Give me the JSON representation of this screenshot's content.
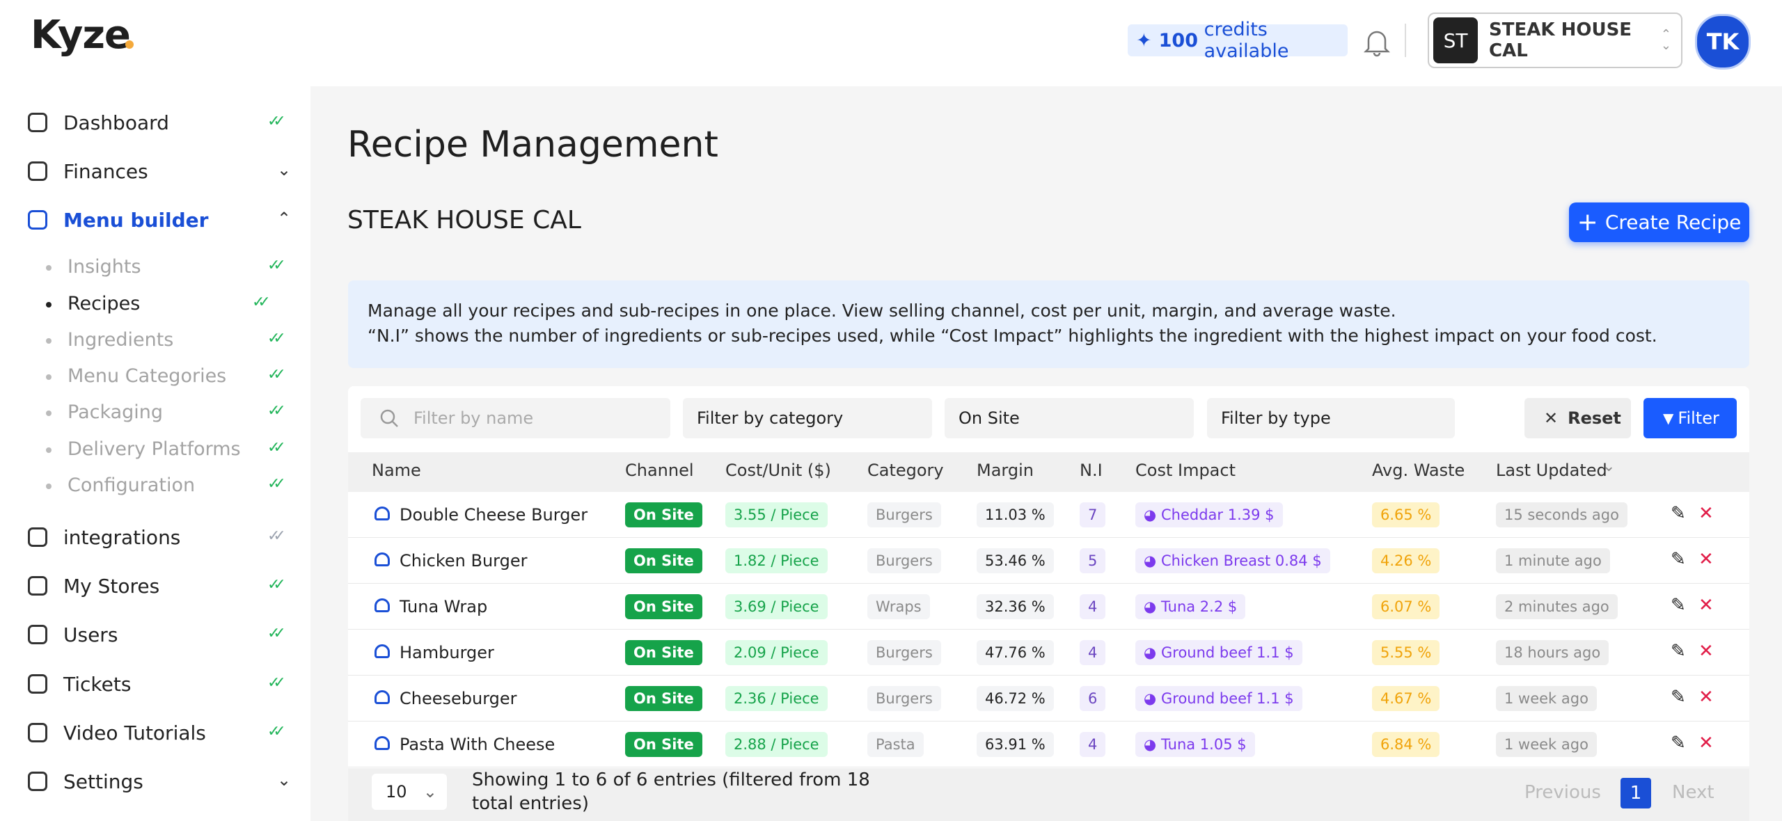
{
  "header": {
    "logo": "Kyze",
    "credits_count": "100",
    "credits_text": "credits available",
    "store_initials": "ST",
    "store_name": "STEAK HOUSE CAL",
    "user_initials": "TK"
  },
  "sidebar": {
    "items": [
      {
        "label": "Dashboard",
        "check_color": "#22b55a"
      },
      {
        "label": "Finances"
      },
      {
        "label": "Menu builder"
      },
      {
        "label": "Insights",
        "check_color": "#22b55a"
      },
      {
        "label": "Recipes",
        "check_color": "#22b55a"
      },
      {
        "label": "Ingredients",
        "check_color": "#22b55a"
      },
      {
        "label": "Menu Categories",
        "check_color": "#22b55a"
      },
      {
        "label": "Packaging",
        "check_color": "#22b55a"
      },
      {
        "label": "Delivery Platforms",
        "check_color": "#22b55a"
      },
      {
        "label": "Configuration",
        "check_color": "#22b55a"
      },
      {
        "label": "integrations",
        "check_color": "#9ca3af"
      },
      {
        "label": "My Stores",
        "check_color": "#22b55a"
      },
      {
        "label": "Users",
        "check_color": "#22b55a"
      },
      {
        "label": "Tickets",
        "check_color": "#22b55a"
      },
      {
        "label": "Video Tutorials",
        "check_color": "#22b55a"
      },
      {
        "label": "Settings"
      }
    ]
  },
  "page": {
    "title": "Recipe Management",
    "store": "STEAK HOUSE CAL",
    "create_button": "Create Recipe",
    "info": [
      "Manage all your recipes and sub-recipes in one place. View selling channel, cost per unit, margin, and average waste.",
      "“N.I” shows the number of ingredients or sub-recipes used, while “Cost Impact” highlights the ingredient with the highest impact on your food cost."
    ]
  },
  "filters": {
    "name_placeholder": "Filter by name",
    "category": "Filter by category",
    "channel": "On Site",
    "type": "Filter by type",
    "reset": "Reset",
    "filter": "Filter"
  },
  "table": {
    "columns": [
      "Name",
      "Channel",
      "Cost/Unit ($)",
      "Category",
      "Margin",
      "N.I",
      "Cost Impact",
      "Avg. Waste",
      "Last Updated"
    ],
    "rows": [
      [
        "Double Cheese Burger",
        "On Site",
        "3.55 / Piece",
        "Burgers",
        "11.03 %",
        "7",
        "Cheddar 1.39 $",
        "6.65 %",
        "15 seconds ago"
      ],
      [
        "Chicken Burger",
        "On Site",
        "1.82 / Piece",
        "Burgers",
        "53.46 %",
        "5",
        "Chicken Breast 0.84 $",
        "4.26 %",
        "1 minute ago"
      ],
      [
        "Tuna Wrap",
        "On Site",
        "3.69 / Piece",
        "Wraps",
        "32.36 %",
        "4",
        "Tuna 2.2 $",
        "6.07 %",
        "2 minutes ago"
      ],
      [
        "Hamburger",
        "On Site",
        "2.09 / Piece",
        "Burgers",
        "47.76 %",
        "4",
        "Ground beef 1.1 $",
        "5.55 %",
        "18 hours ago"
      ],
      [
        "Cheeseburger",
        "On Site",
        "2.36 / Piece",
        "Burgers",
        "46.72 %",
        "6",
        "Ground beef 1.1 $",
        "4.67 %",
        "1 week ago"
      ],
      [
        "Pasta With Cheese",
        "On Site",
        "2.88 / Piece",
        "Pasta",
        "63.91 %",
        "4",
        "Tuna 1.05 $",
        "6.84 %",
        "1 week ago"
      ]
    ]
  },
  "footer": {
    "page_size": "10",
    "showing": "Showing 1 to 6 of 6 entries (filtered from 18 total entries)",
    "previous": "Previous",
    "page": "1",
    "next": "Next"
  }
}
